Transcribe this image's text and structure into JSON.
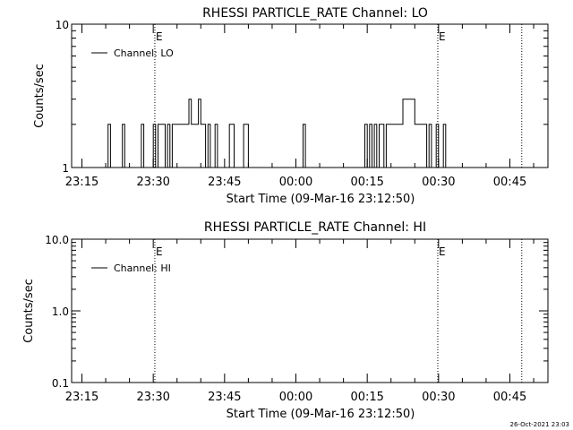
{
  "footer": {
    "timestamp": "26-Oct-2021 23:03"
  },
  "chart_data": [
    {
      "type": "line",
      "title": "RHESSI PARTICLE_RATE Channel: LO",
      "xlabel": "Start Time (09-Mar-16 23:12:50)",
      "ylabel": "Counts/sec",
      "y_scale": "log",
      "ylim": [
        1,
        10
      ],
      "y_ticks": [
        {
          "value": 1,
          "label": "1"
        },
        {
          "value": 10,
          "label": "10"
        }
      ],
      "xlim": [
        "23:12:50",
        "00:53:00"
      ],
      "x_ticks": [
        "23:15",
        "23:30",
        "23:45",
        "00:00",
        "00:15",
        "00:30",
        "00:45"
      ],
      "grid": false,
      "legend": {
        "position": "top-left",
        "entries": [
          "Channel: LO"
        ]
      },
      "annotations": [
        {
          "type": "dotted-vline",
          "x": "23:30:20",
          "label": "E"
        },
        {
          "type": "dotted-vline",
          "x": "00:29:50",
          "label": "E"
        },
        {
          "type": "dotted-vline",
          "x": "00:47:30",
          "label": ""
        }
      ],
      "series": [
        {
          "name": "Channel: LO",
          "x": [
            "23:16:00",
            "23:17:00",
            "23:18:00",
            "23:19:00",
            "23:20:00",
            "23:20:30",
            "23:21:00",
            "23:22:00",
            "23:23:00",
            "23:23:30",
            "23:24:00",
            "23:25:00",
            "23:26:00",
            "23:27:00",
            "23:27:30",
            "23:28:00",
            "23:29:00",
            "23:30:00",
            "23:30:30",
            "23:31:00",
            "23:31:30",
            "23:32:00",
            "23:32:30",
            "23:33:00",
            "23:33:30",
            "23:34:00",
            "23:34:30",
            "23:35:00",
            "23:36:00",
            "23:37:00",
            "23:37:30",
            "23:38:00",
            "23:38:30",
            "23:39:00",
            "23:39:30",
            "23:40:00",
            "23:40:30",
            "23:41:00",
            "23:41:30",
            "23:42:00",
            "23:43:00",
            "23:43:30",
            "23:44:00",
            "23:45:00",
            "23:46:00",
            "23:47:00",
            "23:48:00",
            "23:49:00",
            "23:50:00",
            "23:51:00",
            "23:52:00",
            "23:53:00",
            "23:54:00",
            "23:55:00",
            "23:56:00",
            "23:57:00",
            "23:58:00",
            "23:59:00",
            "00:00:00",
            "00:01:00",
            "00:01:30",
            "00:02:00",
            "00:03:00",
            "00:04:00",
            "00:05:00",
            "00:06:00",
            "00:07:00",
            "00:08:00",
            "00:09:00",
            "00:10:00",
            "00:11:00",
            "00:12:00",
            "00:13:00",
            "00:14:00",
            "00:14:30",
            "00:15:00",
            "00:15:30",
            "00:16:00",
            "00:16:30",
            "00:17:00",
            "00:17:30",
            "00:18:00",
            "00:18:30",
            "00:19:00",
            "00:20:00",
            "00:21:00",
            "00:22:00",
            "00:22:30",
            "00:23:00",
            "00:24:00",
            "00:25:00",
            "00:26:00",
            "00:27:00",
            "00:27:30",
            "00:28:00",
            "00:28:30",
            "00:29:00",
            "00:29:30",
            "00:30:00",
            "00:30:30",
            "00:31:00",
            "00:31:30",
            "00:32:00",
            "00:33:00"
          ],
          "values": [
            1,
            1,
            1,
            1,
            1,
            2,
            1,
            1,
            1,
            2,
            1,
            1,
            1,
            1,
            2,
            1,
            1,
            2,
            1,
            2,
            2,
            2,
            1,
            2,
            1,
            2,
            2,
            2,
            2,
            2,
            3,
            2,
            2,
            2,
            3,
            2,
            2,
            1,
            2,
            1,
            2,
            1,
            1,
            1,
            2,
            1,
            1,
            2,
            1,
            1,
            1,
            1,
            1,
            1,
            1,
            1,
            1,
            1,
            1,
            1,
            2,
            1,
            1,
            1,
            1,
            1,
            1,
            1,
            1,
            1,
            1,
            1,
            1,
            1,
            2,
            1,
            2,
            1,
            2,
            1,
            2,
            2,
            1,
            2,
            2,
            2,
            2,
            3,
            3,
            3,
            2,
            2,
            2,
            1,
            2,
            1,
            1,
            2,
            1,
            1,
            2,
            1,
            1,
            1
          ]
        }
      ]
    },
    {
      "type": "line",
      "title": "RHESSI PARTICLE_RATE Channel: HI",
      "xlabel": "Start Time (09-Mar-16 23:12:50)",
      "ylabel": "Counts/sec",
      "y_scale": "log",
      "ylim": [
        0.1,
        10
      ],
      "y_ticks": [
        {
          "value": 0.1,
          "label": "0.1"
        },
        {
          "value": 1,
          "label": "1.0"
        },
        {
          "value": 10,
          "label": "10.0"
        }
      ],
      "xlim": [
        "23:12:50",
        "00:53:00"
      ],
      "x_ticks": [
        "23:15",
        "23:30",
        "23:45",
        "00:00",
        "00:15",
        "00:30",
        "00:45"
      ],
      "grid": false,
      "legend": {
        "position": "top-left",
        "entries": [
          "Channel: HI"
        ]
      },
      "annotations": [
        {
          "type": "dotted-vline",
          "x": "23:30:20",
          "label": "E"
        },
        {
          "type": "dotted-vline",
          "x": "00:29:50",
          "label": "E"
        },
        {
          "type": "dotted-vline",
          "x": "00:47:30",
          "label": ""
        }
      ],
      "series": [
        {
          "name": "Channel: HI",
          "x": [],
          "values": []
        }
      ]
    }
  ]
}
